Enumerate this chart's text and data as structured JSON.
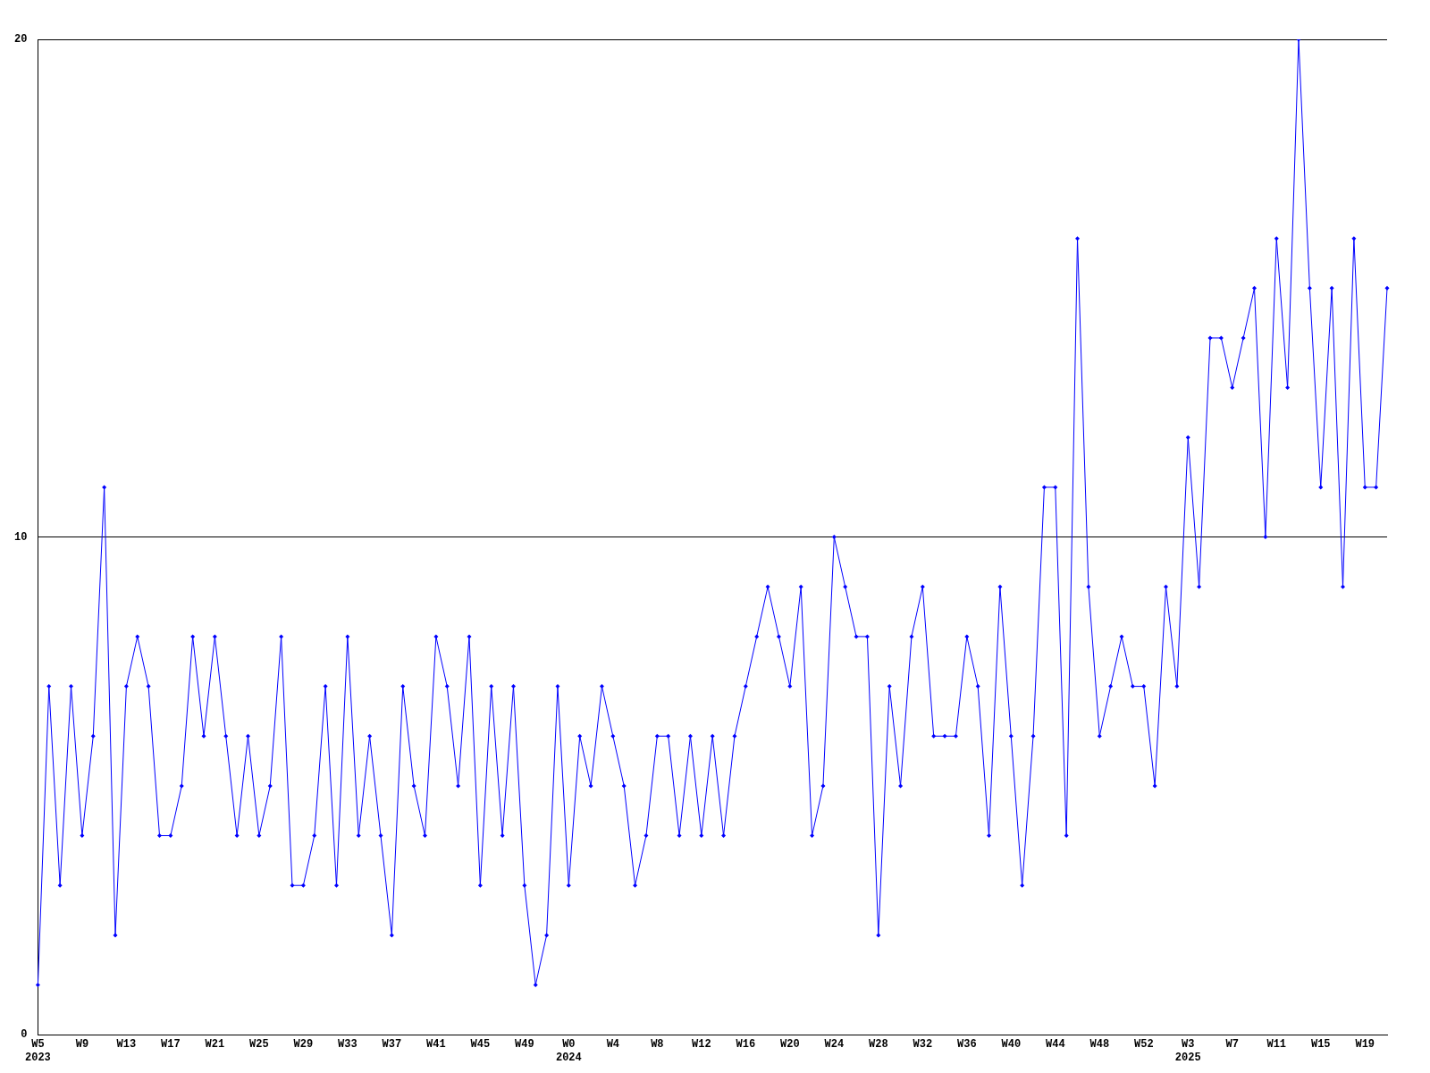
{
  "chart_data": {
    "type": "line",
    "categories": [
      "W5\n2023",
      null,
      null,
      null,
      "W9",
      null,
      null,
      null,
      "W13",
      null,
      null,
      null,
      "W17",
      null,
      null,
      null,
      "W21",
      null,
      null,
      null,
      "W25",
      null,
      null,
      null,
      "W29",
      null,
      null,
      null,
      "W33",
      null,
      null,
      null,
      "W37",
      null,
      null,
      null,
      "W41",
      null,
      null,
      null,
      "W45",
      null,
      null,
      null,
      "W49",
      null,
      null,
      null,
      "W0\n2024",
      null,
      null,
      null,
      "W4",
      null,
      null,
      null,
      "W8",
      null,
      null,
      null,
      "W12",
      null,
      null,
      null,
      "W16",
      null,
      null,
      null,
      "W20",
      null,
      null,
      null,
      "W24",
      null,
      null,
      null,
      "W28",
      null,
      null,
      null,
      "W32",
      null,
      null,
      null,
      "W36",
      null,
      null,
      null,
      "W40",
      null,
      null,
      null,
      "W44",
      null,
      null,
      null,
      "W48",
      null,
      null,
      null,
      "W52",
      null,
      null,
      null,
      "W3\n2025",
      null,
      null,
      null,
      "W7",
      null,
      null,
      null,
      "W11",
      null,
      null,
      null,
      "W15",
      null,
      null,
      null,
      "W19",
      null,
      null
    ],
    "series": [
      {
        "color": "#0000ff",
        "values": [
          1,
          7,
          3,
          7,
          4,
          6,
          11,
          2,
          7,
          8,
          7,
          4,
          4,
          5,
          8,
          6,
          8,
          6,
          4,
          6,
          4,
          5,
          8,
          3,
          3,
          4,
          7,
          3,
          8,
          4,
          6,
          4,
          2,
          7,
          5,
          4,
          8,
          7,
          5,
          8,
          3,
          7,
          4,
          7,
          3,
          1,
          2,
          7,
          3,
          6,
          5,
          7,
          6,
          5,
          3,
          4,
          6,
          6,
          4,
          6,
          4,
          6,
          4,
          6,
          7,
          8,
          9,
          8,
          7,
          9,
          4,
          5,
          10,
          9,
          8,
          8,
          2,
          7,
          5,
          8,
          9,
          6,
          6,
          6,
          8,
          7,
          4,
          9,
          6,
          3,
          6,
          11,
          11,
          4,
          16,
          9,
          6,
          7,
          8,
          7,
          7,
          5,
          9,
          7,
          12,
          9,
          14,
          14,
          13,
          14,
          15,
          10,
          16,
          13,
          20,
          15,
          11,
          15,
          9,
          16,
          11,
          11,
          15
        ]
      }
    ],
    "ylim": [
      0,
      20
    ],
    "yticks": [
      0,
      10,
      20
    ],
    "grid": "y",
    "legend": false,
    "marker": "diamond",
    "line_style": "solid"
  }
}
